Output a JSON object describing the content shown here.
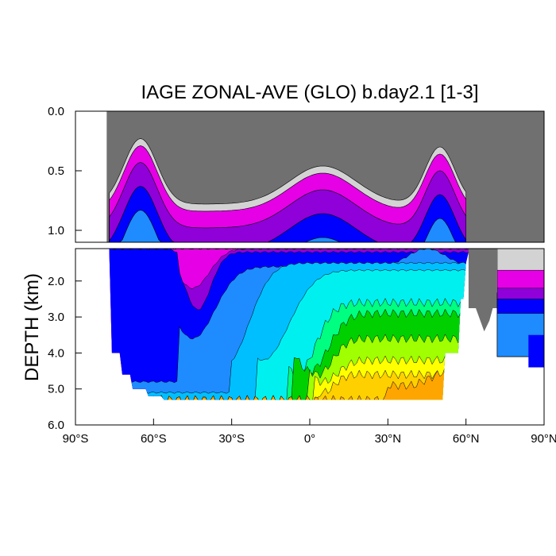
{
  "chart_data": {
    "type": "contour",
    "title": "IAGE ZONAL-AVE (GLO) b.day2.1 [1-3]",
    "ylabel": "DEPTH (km)",
    "xlabel": "",
    "x_range": [
      -90,
      90
    ],
    "y_range": [
      0,
      6
    ],
    "x_ticks": [
      {
        "value": -90,
        "label": "90°S"
      },
      {
        "value": -60,
        "label": "60°S"
      },
      {
        "value": -30,
        "label": "30°S"
      },
      {
        "value": 0,
        "label": "0°"
      },
      {
        "value": 30,
        "label": "30°N"
      },
      {
        "value": 60,
        "label": "60°N"
      },
      {
        "value": 90,
        "label": "90°N"
      }
    ],
    "upper_panel": {
      "depth_range": [
        0,
        1.1
      ],
      "y_ticks": [
        {
          "value": 0,
          "label": "0.0"
        },
        {
          "value": 0.5,
          "label": "0.5"
        },
        {
          "value": 1.0,
          "label": "1.0"
        }
      ]
    },
    "lower_panel": {
      "depth_range": [
        1.1,
        6.0
      ],
      "y_ticks": [
        {
          "value": 2,
          "label": "2.0"
        },
        {
          "value": 3,
          "label": "3.0"
        },
        {
          "value": 4,
          "label": "4.0"
        },
        {
          "value": 5,
          "label": "5.0"
        },
        {
          "value": 6,
          "label": "6.0"
        }
      ]
    },
    "level_colors": [
      "#d3d3d3",
      "#e600e6",
      "#9000d8",
      "#0000ff",
      "#1e8cff",
      "#00bfff",
      "#00f0f0",
      "#00ff80",
      "#00d000",
      "#a0ff00",
      "#ffff00",
      "#ffd000",
      "#ffa500",
      "#ff8000"
    ],
    "land_color": "#707070"
  }
}
